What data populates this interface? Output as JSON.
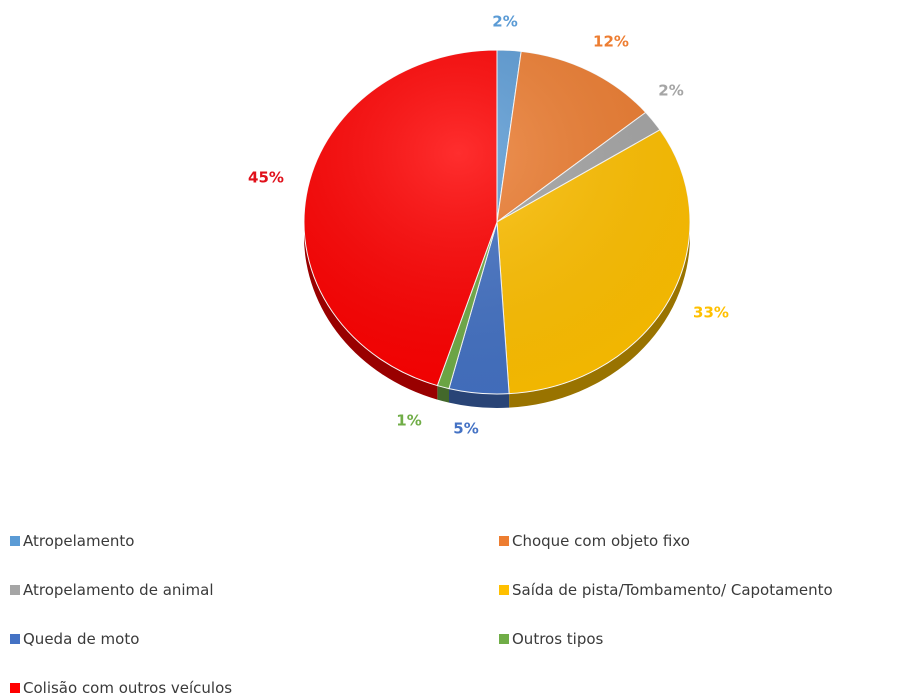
{
  "chart_data": {
    "type": "pie",
    "slices": [
      {
        "label": "Atropelamento",
        "value": 2,
        "display": "2%",
        "color": "#5b9bd5",
        "label_color": "#5b9bd5"
      },
      {
        "label": "Choque com objeto fixo",
        "value": 12,
        "display": "12%",
        "color": "#ed7d31",
        "label_color": "#ed7d31"
      },
      {
        "label": "Atropelamento de animal",
        "value": 2,
        "display": "2%",
        "color": "#a5a5a5",
        "label_color": "#a5a5a5"
      },
      {
        "label": "Saída de pista/Tombamento/ Capotamento",
        "value": 33,
        "display": "33%",
        "color": "#ffc000",
        "label_color": "#ffc000"
      },
      {
        "label": "Queda de moto",
        "value": 5,
        "display": "5%",
        "color": "#4472c4",
        "label_color": "#4472c4"
      },
      {
        "label": "Outros tipos",
        "value": 1,
        "display": "1%",
        "color": "#70ad47",
        "label_color": "#70ad47"
      },
      {
        "label": "Colisão com outros veículos",
        "value": 45,
        "display": "45%",
        "color": "#ff0000",
        "label_color": "#e0101a"
      }
    ],
    "legend_position": "bottom"
  }
}
